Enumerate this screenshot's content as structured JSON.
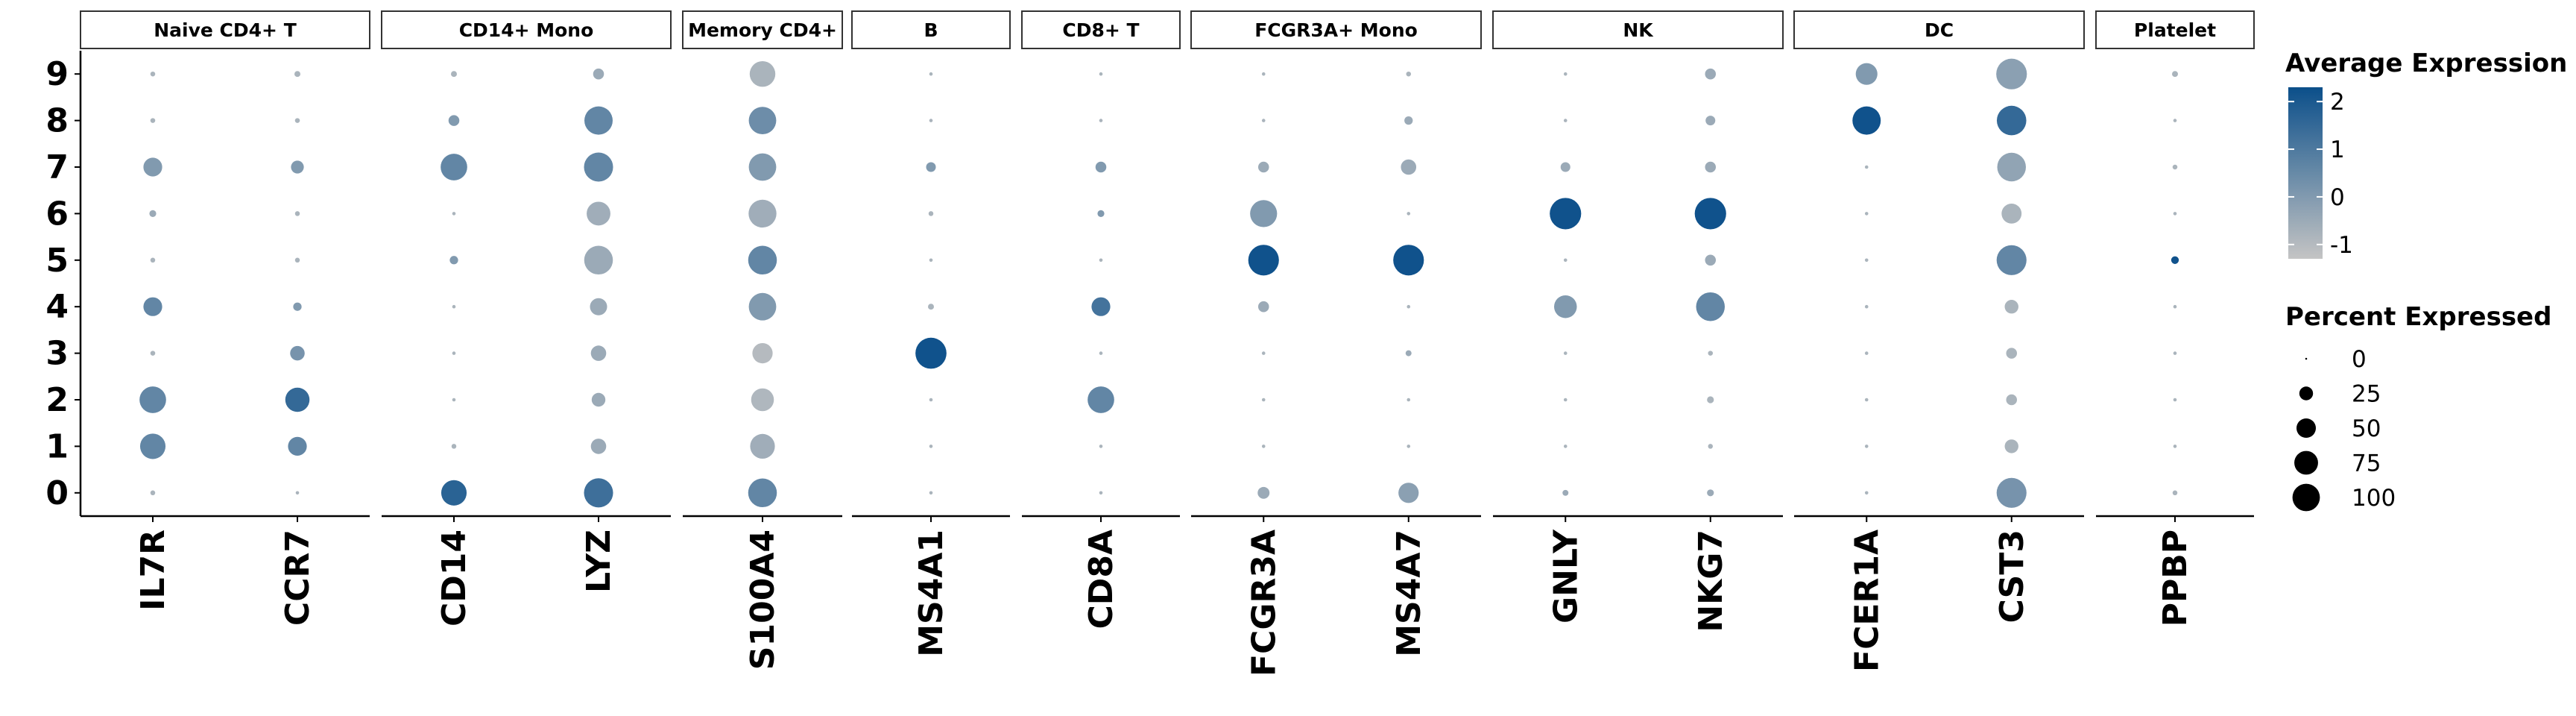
{
  "chart_data": {
    "type": "dotplot",
    "panels": [
      {
        "name": "Naive CD4+ T",
        "genes": [
          "IL7R",
          "CCR7"
        ]
      },
      {
        "name": "CD14+ Mono",
        "genes": [
          "CD14",
          "LYZ"
        ]
      },
      {
        "name": "Memory CD4+",
        "genes": [
          "S100A4"
        ]
      },
      {
        "name": "B",
        "genes": [
          "MS4A1"
        ]
      },
      {
        "name": "CD8+ T",
        "genes": [
          "CD8A"
        ]
      },
      {
        "name": "FCGR3A+ Mono",
        "genes": [
          "FCGR3A",
          "MS4A7"
        ]
      },
      {
        "name": "NK",
        "genes": [
          "GNLY",
          "NKG7"
        ]
      },
      {
        "name": "DC",
        "genes": [
          "FCER1A",
          "CST3"
        ]
      },
      {
        "name": "Platelet",
        "genes": [
          "PPBP"
        ]
      }
    ],
    "clusters": [
      "0",
      "1",
      "2",
      "3",
      "4",
      "5",
      "6",
      "7",
      "8",
      "9"
    ],
    "points": {
      "IL7R": {
        "pct": [
          2,
          55,
          60,
          2,
          30,
          2,
          4,
          30,
          2,
          2
        ],
        "avg": [
          -0.8,
          0.6,
          0.6,
          -0.8,
          0.6,
          -0.8,
          -0.5,
          0.0,
          -0.8,
          -0.8
        ]
      },
      "CCR7": {
        "pct": [
          1,
          30,
          50,
          18,
          6,
          2,
          2,
          14,
          2,
          3
        ],
        "avg": [
          -0.8,
          0.6,
          1.5,
          0.2,
          0.0,
          -0.8,
          -0.8,
          0.0,
          -0.8,
          -0.8
        ]
      },
      "CD14": {
        "pct": [
          55,
          2,
          1,
          1,
          1,
          6,
          1,
          60,
          10,
          3
        ],
        "avg": [
          1.7,
          -0.8,
          -0.8,
          -0.8,
          -0.8,
          0.0,
          -0.8,
          0.6,
          0.0,
          -0.8
        ]
      },
      "LYZ": {
        "pct": [
          72,
          20,
          16,
          20,
          25,
          70,
          48,
          72,
          68,
          10
        ],
        "avg": [
          1.3,
          -0.5,
          -0.5,
          -0.5,
          -0.5,
          -0.5,
          -0.6,
          0.6,
          0.6,
          -0.5
        ]
      },
      "S100A4": {
        "pct": [
          70,
          52,
          44,
          35,
          64,
          70,
          66,
          64,
          64,
          56
        ],
        "avg": [
          0.6,
          -0.6,
          -0.9,
          -1.0,
          0.0,
          0.6,
          -0.6,
          0.0,
          0.4,
          -0.8
        ]
      },
      "MS4A1": {
        "pct": [
          1,
          1,
          1,
          82,
          3,
          1,
          2,
          8,
          1,
          1
        ],
        "avg": [
          -0.8,
          -0.8,
          -0.8,
          2.2,
          -0.8,
          -0.8,
          -0.8,
          0.0,
          -0.8,
          -0.8
        ]
      },
      "CD8A": {
        "pct": [
          1,
          1,
          60,
          1,
          30,
          1,
          4,
          10,
          1,
          1
        ],
        "avg": [
          -0.8,
          -0.8,
          0.6,
          -0.8,
          1.2,
          -0.8,
          0.0,
          0.0,
          -0.8,
          -0.8
        ]
      },
      "FCGR3A": {
        "pct": [
          12,
          1,
          1,
          1,
          10,
          80,
          62,
          10,
          1,
          1
        ],
        "avg": [
          -0.5,
          -0.8,
          -0.8,
          -0.8,
          -0.5,
          2.2,
          0.0,
          -0.5,
          -0.8,
          -0.8
        ]
      },
      "MS4A7": {
        "pct": [
          35,
          1,
          1,
          3,
          1,
          80,
          1,
          20,
          6,
          2
        ],
        "avg": [
          -0.2,
          -0.8,
          -0.8,
          -0.5,
          -0.8,
          2.2,
          -0.8,
          -0.5,
          -0.5,
          -0.8
        ]
      },
      "GNLY": {
        "pct": [
          3,
          1,
          1,
          1,
          44,
          1,
          84,
          8,
          1,
          1
        ],
        "avg": [
          -0.5,
          -0.8,
          -0.8,
          -0.8,
          0.0,
          -0.8,
          2.2,
          -0.5,
          -0.8,
          -0.8
        ]
      },
      "NKG7": {
        "pct": [
          4,
          2,
          4,
          2,
          70,
          10,
          84,
          10,
          8,
          10
        ],
        "avg": [
          -0.5,
          -0.8,
          -0.8,
          -0.8,
          0.6,
          -0.5,
          2.2,
          -0.5,
          -0.5,
          -0.5
        ]
      },
      "FCER1A": {
        "pct": [
          1,
          1,
          1,
          1,
          1,
          1,
          1,
          1,
          68,
          40
        ],
        "avg": [
          -0.8,
          -0.8,
          -0.8,
          -0.8,
          -0.8,
          -0.8,
          -0.8,
          -0.8,
          2.2,
          0.0
        ]
      },
      "CST3": {
        "pct": [
          76,
          16,
          10,
          10,
          16,
          76,
          34,
          70,
          74,
          80
        ],
        "avg": [
          0.2,
          -0.8,
          -0.8,
          -0.8,
          -0.8,
          0.6,
          -0.8,
          -0.3,
          1.5,
          -0.2
        ]
      },
      "PPBP": {
        "pct": [
          2,
          1,
          1,
          1,
          1,
          5,
          1,
          2,
          1,
          3
        ],
        "avg": [
          -0.8,
          -0.8,
          -0.8,
          -0.8,
          -0.8,
          2.2,
          -0.8,
          -0.8,
          -0.8,
          -0.8
        ]
      }
    },
    "color_scale": {
      "low": "#c4c4c4",
      "high": "#0b4f8a",
      "domain": [
        -1.3,
        2.3
      ]
    },
    "legend_color": {
      "title": "Average Expression",
      "ticks": [
        -1,
        0,
        1,
        2
      ]
    },
    "legend_size": {
      "title": "Percent Expressed",
      "values": [
        0,
        25,
        50,
        75,
        100
      ]
    },
    "legend_placement": "right",
    "xlabel": "",
    "ylabel": "",
    "grid": false
  }
}
